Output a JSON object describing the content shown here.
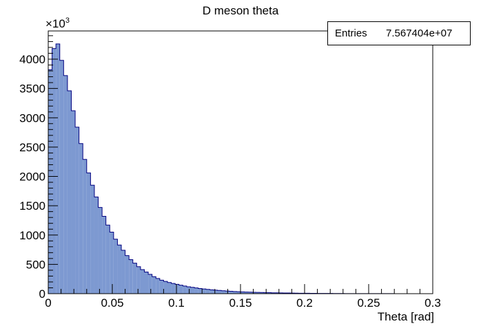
{
  "chart_data": {
    "type": "bar",
    "title": "D meson theta",
    "xlabel": "Theta [rad]",
    "ylabel": "",
    "y_multiplier_label": "×10",
    "y_multiplier_exponent": "3",
    "xlim": [
      0,
      0.3
    ],
    "ylim": [
      0,
      4500
    ],
    "x_tick_labels": [
      "0",
      "0.05",
      "0.1",
      "0.15",
      "0.2",
      "0.25",
      "0.3"
    ],
    "y_tick_labels": [
      "0",
      "500",
      "1000",
      "1500",
      "2000",
      "2500",
      "3000",
      "3500",
      "4000"
    ],
    "bin_width": 0.003,
    "bin_edges_start": 0,
    "values": [
      3820,
      4180,
      4260,
      3980,
      3720,
      3460,
      3120,
      2840,
      2560,
      2290,
      2060,
      1850,
      1650,
      1470,
      1320,
      1170,
      1050,
      930,
      830,
      740,
      650,
      580,
      520,
      460,
      410,
      370,
      330,
      290,
      260,
      230,
      210,
      190,
      175,
      160,
      145,
      130,
      118,
      108,
      98,
      88,
      80,
      73,
      66,
      60,
      55,
      50,
      45,
      41,
      37,
      34,
      31,
      28,
      26,
      24,
      22,
      20,
      18,
      17,
      15,
      14,
      13,
      12,
      11,
      10,
      9,
      8,
      8,
      7,
      6,
      6,
      5,
      5,
      4,
      4,
      3,
      3,
      3,
      2,
      2,
      2,
      2,
      1,
      1,
      1,
      1,
      1,
      1,
      1,
      1,
      1,
      0,
      0,
      0,
      0,
      0,
      0,
      0,
      0,
      0,
      0
    ],
    "fill_color": "#7d99d1",
    "line_color": "#000080",
    "grid": false,
    "legend": "none"
  },
  "stats": {
    "label": "Entries",
    "value": "7.567404e+07"
  }
}
